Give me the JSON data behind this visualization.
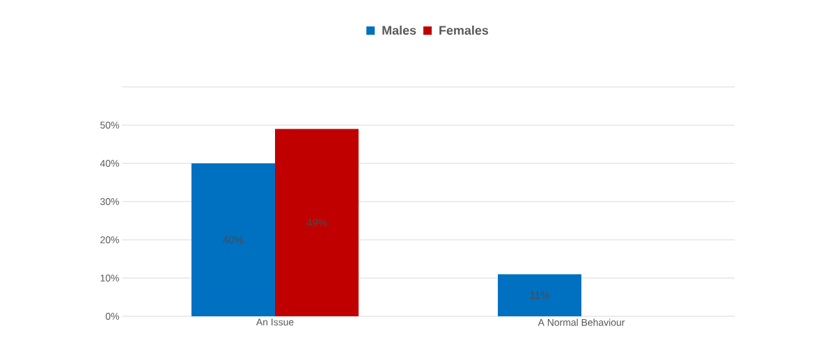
{
  "chart_data": {
    "type": "bar",
    "categories": [
      "An Issue",
      "A Normal Behaviour"
    ],
    "series": [
      {
        "name": "Males",
        "color": "#0070c0",
        "values": [
          40,
          11
        ],
        "value_labels": [
          "40%",
          "11%"
        ]
      },
      {
        "name": "Females",
        "color": "#c00000",
        "values": [
          49,
          null
        ],
        "value_labels": [
          "49%",
          null
        ]
      }
    ],
    "ylim": [
      0,
      60
    ],
    "yticks": [
      {
        "value": 0,
        "label": "0%"
      },
      {
        "value": 10,
        "label": "10%"
      },
      {
        "value": 20,
        "label": "20%"
      },
      {
        "value": 30,
        "label": "30%"
      },
      {
        "value": 40,
        "label": "40%"
      },
      {
        "value": 50,
        "label": "50%"
      },
      {
        "value": 60,
        "label": null
      }
    ],
    "grid": "y",
    "legend": "top"
  }
}
